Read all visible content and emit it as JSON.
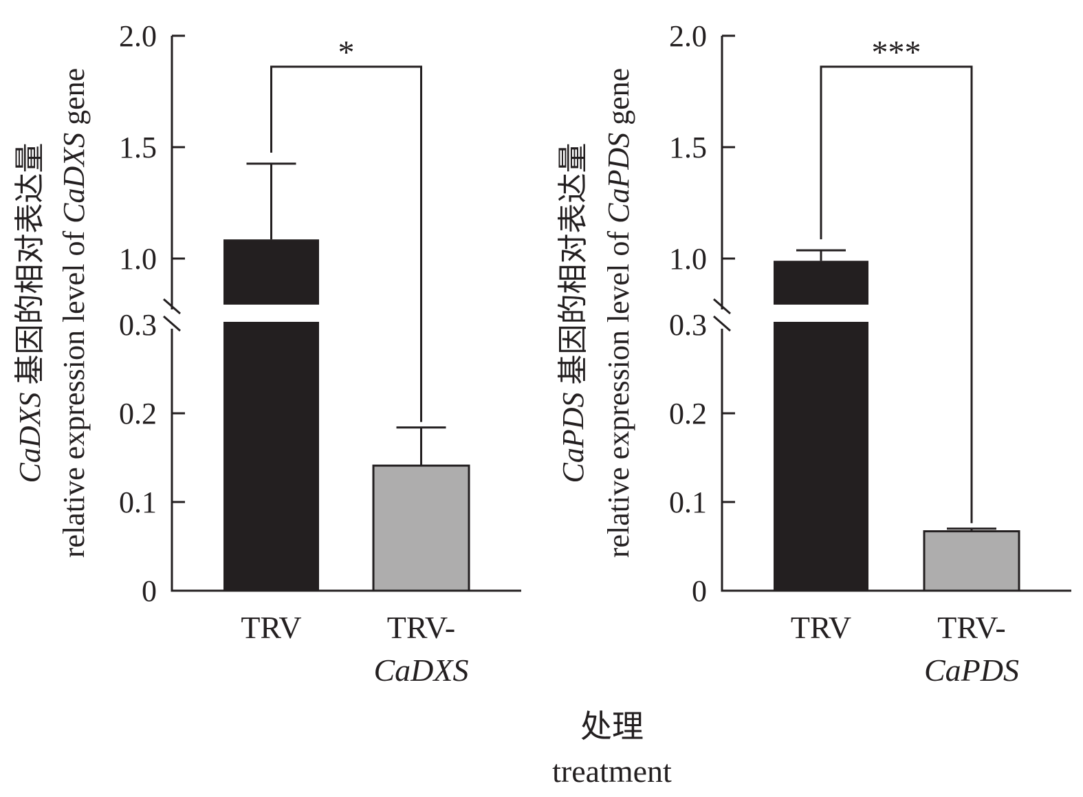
{
  "chart_data": [
    {
      "type": "bar",
      "panel": "left",
      "categories": [
        "TRV",
        "TRV-CaDXS"
      ],
      "category_labels": [
        {
          "line1": "TRV",
          "line2": ""
        },
        {
          "line1": "TRV-",
          "line2": "CaDXS"
        }
      ],
      "values": [
        1.086,
        0.141
      ],
      "errors_upper": [
        1.426,
        0.184
      ],
      "bar_colors": [
        "#231f20",
        "#aeadad"
      ],
      "ylabel_line1_italic": "CaDXS",
      "ylabel_line1_cn": " 基因的相对表达量",
      "ylabel_line2_plain": "relative expression level of ",
      "ylabel_line2_italic": "CaDXS",
      "ylabel_line2_end": " gene",
      "yticks_lower": [
        0,
        0.1,
        0.2,
        0.3
      ],
      "yticks_lower_labels": [
        "0",
        "0.1",
        "0.2",
        "0.3"
      ],
      "yticks_upper": [
        1.0,
        1.5,
        2.0
      ],
      "yticks_upper_labels": [
        "1.0",
        "1.5",
        "2.0"
      ],
      "axis_break": [
        0.3,
        1.0
      ],
      "ylim": [
        0,
        2.0
      ],
      "significance": "*",
      "grid": false
    },
    {
      "type": "bar",
      "panel": "right",
      "categories": [
        "TRV",
        "TRV-CaPDS"
      ],
      "category_labels": [
        {
          "line1": "TRV",
          "line2": ""
        },
        {
          "line1": "TRV-",
          "line2": "CaPDS"
        }
      ],
      "values": [
        0.99,
        0.067
      ],
      "errors_upper": [
        1.037,
        0.07
      ],
      "bar_colors": [
        "#231f20",
        "#aeadad"
      ],
      "ylabel_line1_italic": "CaPDS",
      "ylabel_line1_cn": " 基因的相对表达量",
      "ylabel_line2_plain": "relative expression level of ",
      "ylabel_line2_italic": "CaPDS",
      "ylabel_line2_end": " gene",
      "yticks_lower": [
        0,
        0.1,
        0.2,
        0.3
      ],
      "yticks_lower_labels": [
        "0",
        "0.1",
        "0.2",
        "0.3"
      ],
      "yticks_upper": [
        1.0,
        1.5,
        2.0
      ],
      "yticks_upper_labels": [
        "1.0",
        "1.5",
        "2.0"
      ],
      "axis_break": [
        0.3,
        1.0
      ],
      "ylim": [
        0,
        2.0
      ],
      "significance": "***",
      "grid": false
    }
  ],
  "xlabel": {
    "cn": "处理",
    "en": "treatment"
  }
}
